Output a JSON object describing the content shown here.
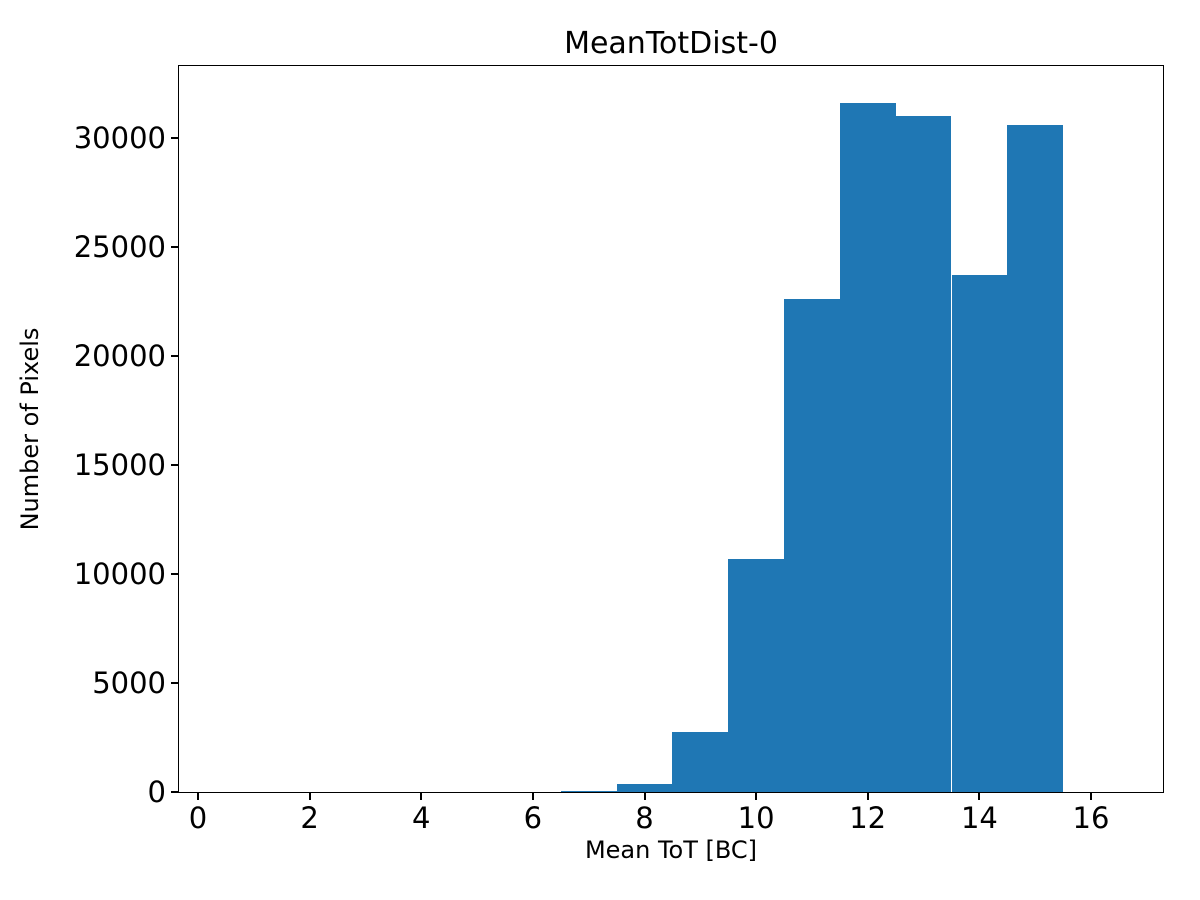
{
  "chart_data": {
    "type": "bar",
    "subtype": "histogram",
    "title": "MeanTotDist-0",
    "xlabel": "Mean ToT [BC]",
    "ylabel": "Number of Pixels",
    "bin_edges": [
      6.5,
      7.5,
      8.5,
      9.5,
      10.5,
      11.5,
      12.5,
      13.5,
      14.5,
      15.5
    ],
    "counts": [
      70,
      350,
      2770,
      10700,
      22600,
      31600,
      31000,
      23700,
      30600
    ],
    "xticks": [
      0,
      2,
      4,
      6,
      8,
      10,
      12,
      14,
      16
    ],
    "yticks": [
      0,
      5000,
      10000,
      15000,
      20000,
      25000,
      30000
    ],
    "xlim": [
      -0.34,
      17.29
    ],
    "ylim": [
      0,
      33280
    ],
    "bar_color": "#1f77b4",
    "grid": "off",
    "legend": "none"
  }
}
